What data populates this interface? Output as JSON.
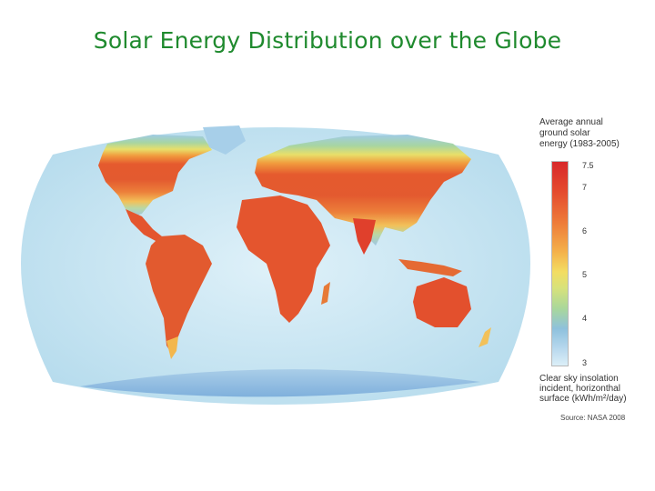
{
  "title": "Solar Energy Distribution over the Globe",
  "legend": {
    "title_lines": [
      "Average annual",
      "ground solar",
      "energy (1983-2005)"
    ],
    "ticks": [
      "7.5",
      "7",
      "6",
      "5",
      "4",
      "3"
    ],
    "unit_lines": [
      "Clear sky insolation",
      "incident, horizonthal",
      "surface (kWh/m²/day)"
    ],
    "scale_colors": [
      "#d8282a",
      "#ee7c3a",
      "#f3dd62",
      "#a9d79b",
      "#8ec1dd",
      "#dceff8"
    ]
  },
  "source": "Source: NASA 2008",
  "icons": {
    "map": "world-map-illustration"
  }
}
